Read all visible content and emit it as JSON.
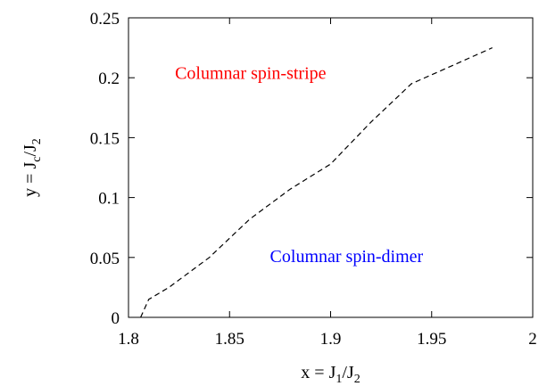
{
  "chart_data": {
    "type": "line",
    "xlabel": {
      "base": "x = J",
      "sub1": "1",
      "mid": "/J",
      "sub2": "2"
    },
    "ylabel": {
      "base": "y = J",
      "sub1": "c",
      "mid": "/J",
      "sub2": "2"
    },
    "xlim": [
      1.8,
      2.0
    ],
    "ylim": [
      0,
      0.25
    ],
    "xticks": [
      1.8,
      1.85,
      1.9,
      1.95,
      2.0
    ],
    "xtick_labels": [
      "1.8",
      "1.85",
      "1.9",
      "1.95",
      "2"
    ],
    "yticks": [
      0,
      0.05,
      0.1,
      0.15,
      0.2,
      0.25
    ],
    "ytick_labels": [
      "0",
      "0.05",
      "0.1",
      "0.15",
      "0.2",
      "0.25"
    ],
    "grid": false,
    "series": [
      {
        "style": "dashed",
        "color": "#000000",
        "x": [
          1.806,
          1.81,
          1.82,
          1.84,
          1.86,
          1.88,
          1.9,
          1.92,
          1.94,
          1.96,
          1.98
        ],
        "y": [
          0.0,
          0.015,
          0.025,
          0.05,
          0.082,
          0.107,
          0.128,
          0.163,
          0.195,
          0.21,
          0.225
        ]
      }
    ],
    "annotations": [
      {
        "text": "Columnar spin-stripe",
        "x": 1.823,
        "y": 0.199,
        "color": "#ff0000"
      },
      {
        "text": "Columnar spin-dimer",
        "x": 1.87,
        "y": 0.046,
        "color": "#0000ff"
      }
    ]
  }
}
